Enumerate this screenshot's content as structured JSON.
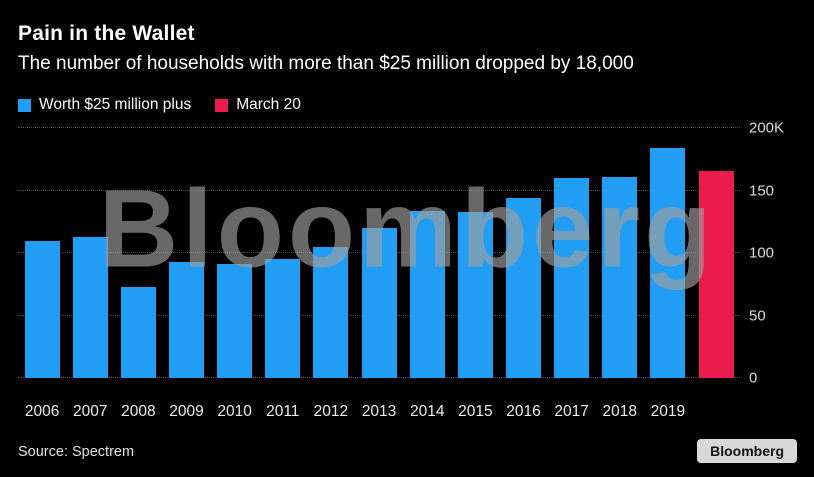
{
  "header": {
    "title": "Pain in the Wallet",
    "subtitle": "The number of households with more than $25 million dropped by 18,000"
  },
  "legend": [
    {
      "label": "Worth $25 million plus",
      "color": "#219df4"
    },
    {
      "label": "March 20",
      "color": "#ec1b4d"
    }
  ],
  "watermark": "Bloomberg",
  "chart_data": {
    "type": "bar",
    "title": "Pain in the Wallet",
    "subtitle": "The number of households with more than $25 million dropped by 18,000",
    "unit": "thousands of households",
    "ylim": [
      0,
      200
    ],
    "grid": "horizontal-dotted",
    "legend_position": "top-left",
    "series_colors": {
      "Worth $25 million plus": "#219df4",
      "March 20": "#ec1b4d"
    },
    "y_ticks": [
      {
        "value": 0,
        "label": "0"
      },
      {
        "value": 50,
        "label": "50"
      },
      {
        "value": 100,
        "label": "100"
      },
      {
        "value": 150,
        "label": "150"
      },
      {
        "value": 200,
        "label": "200K"
      }
    ],
    "bars": [
      {
        "category": "2006",
        "x_label": "2006",
        "value": 110,
        "series": "Worth $25 million plus"
      },
      {
        "category": "2007",
        "x_label": "2007",
        "value": 113,
        "series": "Worth $25 million plus"
      },
      {
        "category": "2008",
        "x_label": "2008",
        "value": 73,
        "series": "Worth $25 million plus"
      },
      {
        "category": "2009",
        "x_label": "2009",
        "value": 93,
        "series": "Worth $25 million plus"
      },
      {
        "category": "2010",
        "x_label": "2010",
        "value": 91,
        "series": "Worth $25 million plus"
      },
      {
        "category": "2011",
        "x_label": "2011",
        "value": 95,
        "series": "Worth $25 million plus"
      },
      {
        "category": "2012",
        "x_label": "2012",
        "value": 105,
        "series": "Worth $25 million plus"
      },
      {
        "category": "2013",
        "x_label": "2013",
        "value": 120,
        "series": "Worth $25 million plus"
      },
      {
        "category": "2014",
        "x_label": "2014",
        "value": 134,
        "series": "Worth $25 million plus"
      },
      {
        "category": "2015",
        "x_label": "2015",
        "value": 133,
        "series": "Worth $25 million plus"
      },
      {
        "category": "2016",
        "x_label": "2016",
        "value": 144,
        "series": "Worth $25 million plus"
      },
      {
        "category": "2017",
        "x_label": "2017",
        "value": 160,
        "series": "Worth $25 million plus"
      },
      {
        "category": "2018",
        "x_label": "2018",
        "value": 161,
        "series": "Worth $25 million plus"
      },
      {
        "category": "2019",
        "x_label": "2019",
        "value": 184,
        "series": "Worth $25 million plus"
      },
      {
        "category": "March 20",
        "x_label": "",
        "value": 166,
        "series": "March 20"
      }
    ]
  },
  "footer": {
    "source": "Source: Spectrem",
    "logo": "Bloomberg"
  }
}
